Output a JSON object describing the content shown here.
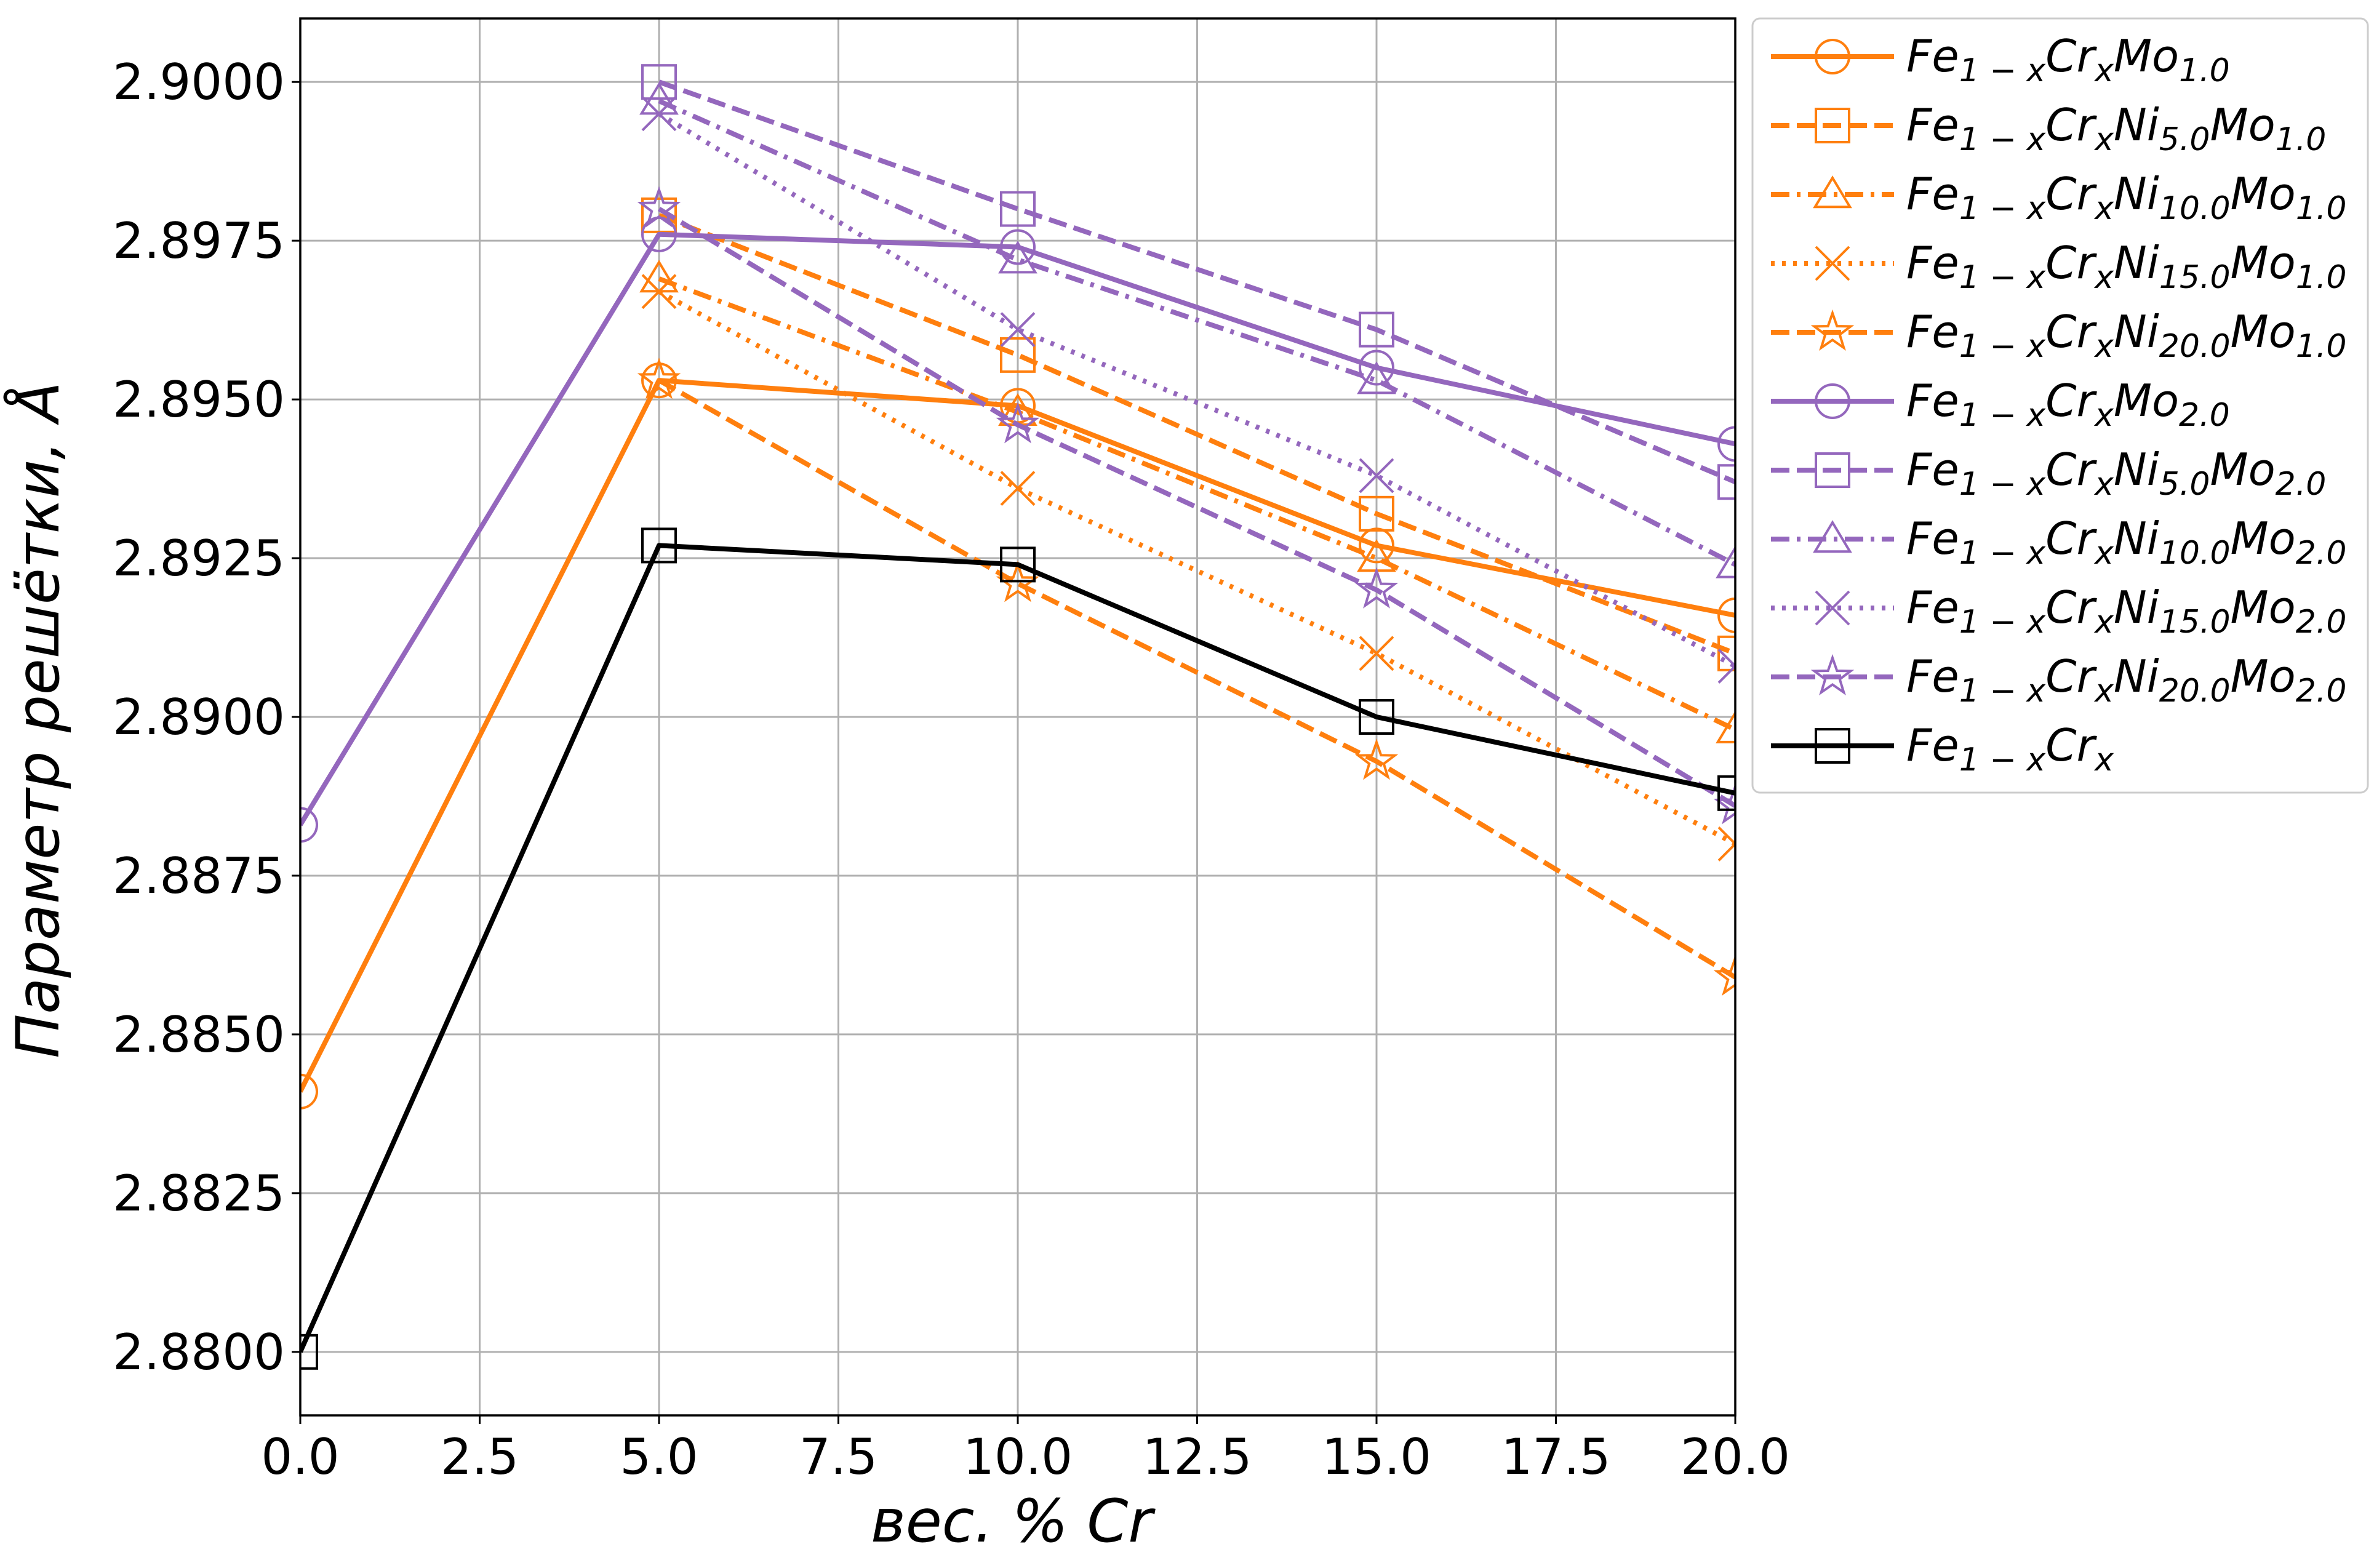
{
  "chart_data": {
    "type": "line",
    "xlabel": "вес. % Cr",
    "ylabel": "Параметр решётки, Å",
    "xlim": [
      0,
      20
    ],
    "ylim": [
      2.879,
      2.901
    ],
    "x_ticks": [
      "0.0",
      "2.5",
      "5.0",
      "7.5",
      "10.0",
      "12.5",
      "15.0",
      "17.5",
      "20.0"
    ],
    "y_ticks": [
      "2.8800",
      "2.8825",
      "2.8850",
      "2.8875",
      "2.8900",
      "2.8925",
      "2.8950",
      "2.8975",
      "2.9000"
    ],
    "grid": true,
    "legend_position": "outside-right-top",
    "x": [
      0,
      5,
      10,
      15,
      20
    ],
    "series": [
      {
        "name": "Fe1-xCrxMo1.0",
        "name_parts": {
          "ni": "",
          "mo": "1.0"
        },
        "color": "#ff7f0e",
        "dash": "solid",
        "marker": "circle",
        "x": [
          0,
          5,
          10,
          15,
          20
        ],
        "values": [
          2.8841,
          2.8953,
          2.8949,
          2.8927,
          2.8916
        ]
      },
      {
        "name": "Fe1-xCrxNi5.0Mo1.0",
        "name_parts": {
          "ni": "5.0",
          "mo": "1.0"
        },
        "color": "#ff7f0e",
        "dash": "dashed",
        "marker": "square",
        "x": [
          5,
          10,
          15,
          20
        ],
        "values": [
          2.8979,
          2.8957,
          2.8932,
          2.891
        ]
      },
      {
        "name": "Fe1-xCrxNi10.0Mo1.0",
        "name_parts": {
          "ni": "10.0",
          "mo": "1.0"
        },
        "color": "#ff7f0e",
        "dash": "dashdot",
        "marker": "triangle",
        "x": [
          5,
          10,
          15,
          20
        ],
        "values": [
          2.8969,
          2.8948,
          2.8925,
          2.8898
        ]
      },
      {
        "name": "Fe1-xCrxNi15.0Mo1.0",
        "name_parts": {
          "ni": "15.0",
          "mo": "1.0"
        },
        "color": "#ff7f0e",
        "dash": "dotted",
        "marker": "x",
        "x": [
          5,
          10,
          15,
          20
        ],
        "values": [
          2.8967,
          2.8936,
          2.891,
          2.888
        ]
      },
      {
        "name": "Fe1-xCrxNi20.0Mo1.0",
        "name_parts": {
          "ni": "20.0",
          "mo": "1.0"
        },
        "color": "#ff7f0e",
        "dash": "dashed",
        "marker": "star",
        "x": [
          5,
          10,
          15,
          20
        ],
        "values": [
          2.8953,
          2.8921,
          2.8893,
          2.8859
        ]
      },
      {
        "name": "Fe1-xCrxMo2.0",
        "name_parts": {
          "ni": "",
          "mo": "2.0"
        },
        "color": "#9467bd",
        "dash": "solid",
        "marker": "circle",
        "x": [
          0,
          5,
          10,
          15,
          20
        ],
        "values": [
          2.8883,
          2.8976,
          2.8974,
          2.8955,
          2.8943
        ]
      },
      {
        "name": "Fe1-xCrxNi5.0Mo2.0",
        "name_parts": {
          "ni": "5.0",
          "mo": "2.0"
        },
        "color": "#9467bd",
        "dash": "dashed",
        "marker": "square",
        "x": [
          5,
          10,
          15,
          20
        ],
        "values": [
          2.9,
          2.898,
          2.8961,
          2.8937
        ]
      },
      {
        "name": "Fe1-xCrxNi10.0Mo2.0",
        "name_parts": {
          "ni": "10.0",
          "mo": "2.0"
        },
        "color": "#9467bd",
        "dash": "dashdot",
        "marker": "triangle",
        "x": [
          5,
          10,
          15,
          20
        ],
        "values": [
          2.8997,
          2.8972,
          2.8953,
          2.8924
        ]
      },
      {
        "name": "Fe1-xCrxNi15.0Mo2.0",
        "name_parts": {
          "ni": "15.0",
          "mo": "2.0"
        },
        "color": "#9467bd",
        "dash": "dotted",
        "marker": "x",
        "x": [
          5,
          10,
          15,
          20
        ],
        "values": [
          2.8995,
          2.8961,
          2.8938,
          2.8908
        ]
      },
      {
        "name": "Fe1-xCrxNi20.0Mo2.0",
        "name_parts": {
          "ni": "20.0",
          "mo": "2.0"
        },
        "color": "#9467bd",
        "dash": "dashed",
        "marker": "star",
        "x": [
          5,
          10,
          15,
          20
        ],
        "values": [
          2.898,
          2.8946,
          2.892,
          2.8886
        ]
      },
      {
        "name": "Fe1-xCrx",
        "name_parts": {
          "ni": "",
          "mo": ""
        },
        "color": "#000000",
        "dash": "solid",
        "marker": "square",
        "x": [
          0,
          5,
          10,
          15,
          20
        ],
        "values": [
          2.88,
          2.8927,
          2.8924,
          2.89,
          2.8888
        ]
      }
    ]
  }
}
